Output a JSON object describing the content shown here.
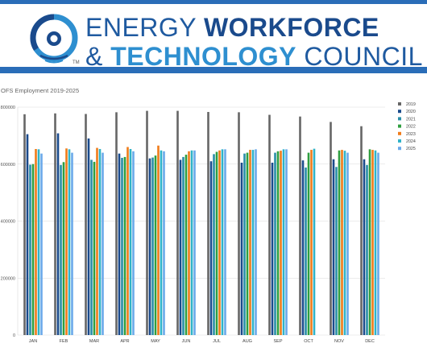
{
  "header": {
    "line1_thin": "ENERGY",
    "line1_bold": "WORKFORCE",
    "line2_thin_prefix": "&",
    "line2_bold": "TECHNOLOGY",
    "line2_thin_suffix": "COUNCIL",
    "trademark": "TM"
  },
  "colors": {
    "rule_blue": "#2a6db8",
    "logo_light": "#2e8fd0",
    "logo_navy": "#1a4a8c"
  },
  "chart_data": {
    "type": "bar",
    "title": "OFS Employment 2019-2025",
    "xlabel": "",
    "ylabel": "",
    "ylim": [
      0,
      800000
    ],
    "y_ticks": [
      0,
      200000,
      400000,
      600000,
      800000
    ],
    "y_tick_labels": [
      "0",
      "200000",
      "400000",
      "600000",
      "800000"
    ],
    "grid": true,
    "legend_position": "right",
    "categories": [
      "JAN",
      "FEB",
      "MAR",
      "APR",
      "MAY",
      "JUN",
      "JUL",
      "AUG",
      "SEP",
      "OCT",
      "NOV",
      "DEC"
    ],
    "series": [
      {
        "name": "2019",
        "color": "#666666",
        "values": [
          775000,
          778000,
          776000,
          782000,
          787000,
          787000,
          783000,
          782000,
          773000,
          767000,
          748000,
          733000
        ]
      },
      {
        "name": "2020",
        "color": "#1a4a8c",
        "values": [
          705000,
          708000,
          690000,
          637000,
          620000,
          615000,
          610000,
          605000,
          605000,
          613000,
          617000,
          617000
        ]
      },
      {
        "name": "2021",
        "color": "#2a8ea8",
        "values": [
          598000,
          597000,
          615000,
          622000,
          623000,
          625000,
          635000,
          637000,
          640000,
          588000,
          590000,
          597000
        ]
      },
      {
        "name": "2022",
        "color": "#2f9e3f",
        "values": [
          600000,
          607000,
          608000,
          625000,
          630000,
          633000,
          643000,
          640000,
          645000,
          640000,
          648000,
          652000
        ]
      },
      {
        "name": "2023",
        "color": "#f07c1a",
        "values": [
          653000,
          655000,
          657000,
          660000,
          665000,
          645000,
          648000,
          650000,
          647000,
          650000,
          650000,
          650000
        ]
      },
      {
        "name": "2024",
        "color": "#2fb3c8",
        "values": [
          652000,
          652000,
          653000,
          653000,
          648000,
          648000,
          652000,
          650000,
          652000,
          654000,
          647000,
          648000
        ]
      },
      {
        "name": "2025",
        "color": "#6aa9ea",
        "values": [
          637000,
          640000,
          640000,
          645000,
          645000,
          648000,
          652000,
          652000,
          652000,
          0,
          640000,
          640000
        ]
      }
    ]
  }
}
